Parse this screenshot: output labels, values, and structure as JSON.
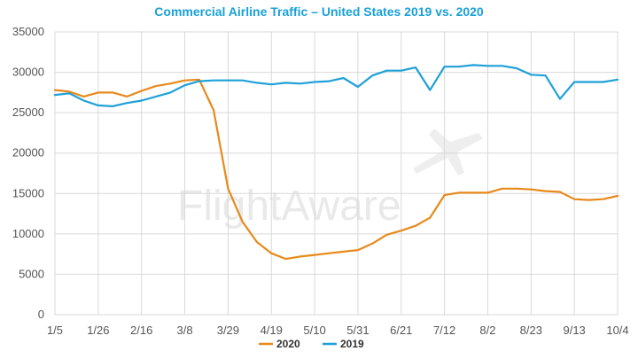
{
  "chart_data": {
    "type": "line",
    "title": "Commercial Airline Traffic – United States 2019 vs. 2020",
    "xlabel": "",
    "ylabel": "",
    "ylim": [
      0,
      35000
    ],
    "y_ticks": [
      "0",
      "5000",
      "10000",
      "15000",
      "20000",
      "25000",
      "30000",
      "35000"
    ],
    "x_tick_labels": [
      "1/5",
      "1/26",
      "2/16",
      "3/8",
      "3/29",
      "4/19",
      "5/10",
      "5/31",
      "6/21",
      "7/12",
      "8/2",
      "8/23",
      "9/13",
      "10/4"
    ],
    "x_tick_index": [
      0,
      3,
      6,
      9,
      12,
      15,
      18,
      21,
      24,
      27,
      30,
      33,
      36,
      39
    ],
    "num_points": 40,
    "series": [
      {
        "name": "2020",
        "color": "#e8891b",
        "values": [
          27800,
          27600,
          27000,
          27500,
          27500,
          27000,
          27700,
          28300,
          28600,
          29000,
          29100,
          25300,
          15600,
          11500,
          9000,
          7600,
          6900,
          7200,
          7400,
          7600,
          7800,
          8000,
          8800,
          9900,
          10400,
          11000,
          12000,
          14800,
          15100,
          15100,
          15100,
          15600,
          15600,
          15500,
          15300,
          15200,
          14300,
          14200,
          14300,
          14700
        ]
      },
      {
        "name": "2019",
        "color": "#1fa0d8",
        "values": [
          27200,
          27400,
          26500,
          25900,
          25800,
          26200,
          26500,
          27000,
          27500,
          28400,
          28900,
          29000,
          29000,
          29000,
          28700,
          28500,
          28700,
          28600,
          28800,
          28900,
          29300,
          28200,
          29600,
          30200,
          30200,
          30600,
          27800,
          30700,
          30700,
          30900,
          30800,
          30800,
          30500,
          29700,
          29600,
          26700,
          28800,
          28800,
          28800,
          29100
        ]
      }
    ],
    "legend_position": "bottom-center",
    "grid": true
  },
  "watermark": {
    "text": "FlightAware"
  }
}
